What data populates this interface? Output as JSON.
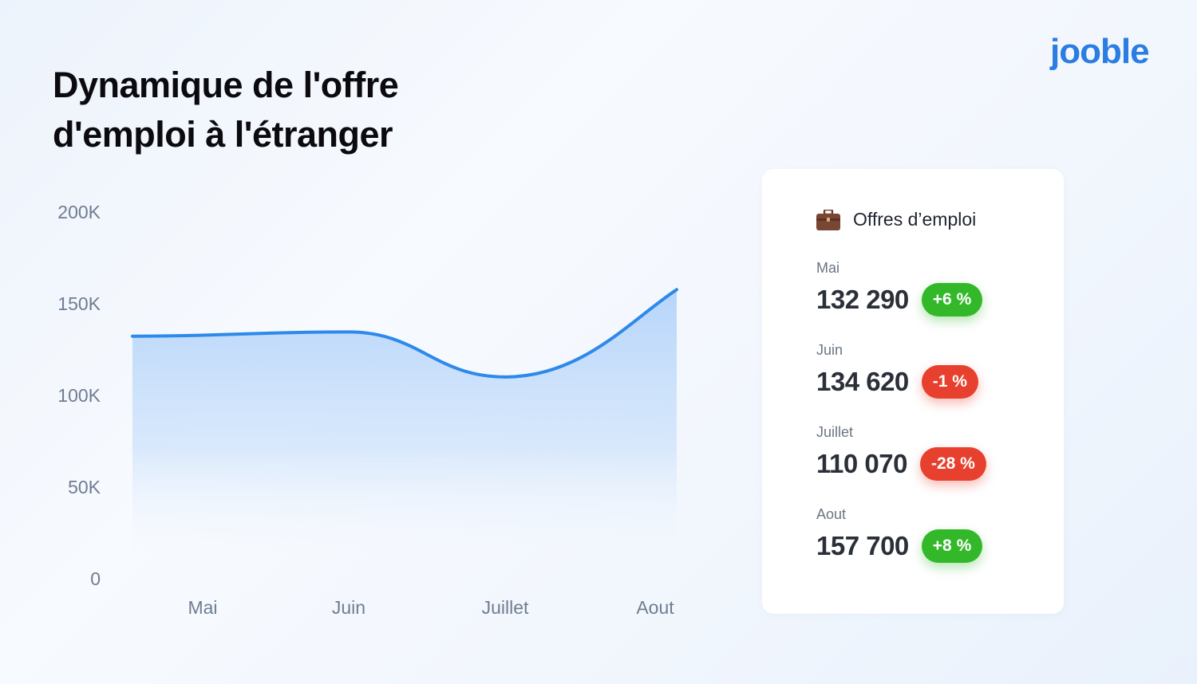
{
  "title_line1": "Dynamique de l'offre",
  "title_line2": "d'emploi à l'étranger",
  "logo": "jooble",
  "chart_data": {
    "type": "area",
    "categories": [
      "Mai",
      "Juin",
      "Juillet",
      "Aout"
    ],
    "values": [
      132290,
      134620,
      110070,
      157700
    ],
    "ylim": [
      0,
      200000
    ],
    "yticks": [
      0,
      50000,
      100000,
      150000,
      200000
    ],
    "ytick_labels": [
      "0",
      "50K",
      "100K",
      "150K",
      "200K"
    ],
    "line_color": "#2d89ea",
    "fill_color": "#b6d5fa",
    "grid": false
  },
  "panel": {
    "title": "Offres d’emploi",
    "icon": "briefcase-icon",
    "entries": [
      {
        "month": "Mai",
        "value": "132 290",
        "change": "+6 %",
        "trend": "up"
      },
      {
        "month": "Juin",
        "value": "134 620",
        "change": "-1 %",
        "trend": "down"
      },
      {
        "month": "Juillet",
        "value": "110 070",
        "change": "-28 %",
        "trend": "down"
      },
      {
        "month": "Aout",
        "value": "157 700",
        "change": "+8 %",
        "trend": "up"
      }
    ],
    "colors": {
      "up": "#33b82a",
      "down": "#e8402e"
    }
  }
}
